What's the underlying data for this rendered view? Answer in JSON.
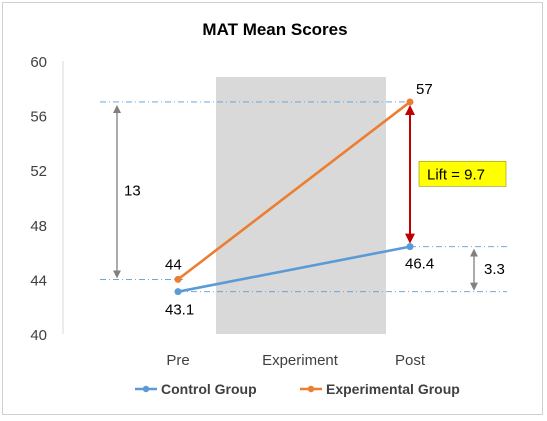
{
  "chart_data": {
    "type": "line",
    "title": "MAT Mean Scores",
    "categories": [
      "Pre",
      "Experiment",
      "Post"
    ],
    "ylim": [
      40,
      60
    ],
    "yticks": [
      40,
      44,
      48,
      52,
      56,
      60
    ],
    "grid": false,
    "legend_position": "bottom",
    "shaded_region_label": "Experiment",
    "series": [
      {
        "name": "Control Group",
        "color": "#5b9bd5",
        "points": [
          {
            "x": "Pre",
            "y": 43.1
          },
          {
            "x": "Post",
            "y": 46.4
          }
        ]
      },
      {
        "name": "Experimental Group",
        "color": "#ed7d31",
        "points": [
          {
            "x": "Pre",
            "y": 44
          },
          {
            "x": "Post",
            "y": 57
          }
        ]
      }
    ],
    "data_labels": {
      "exp_pre": "44",
      "ctrl_pre": "43.1",
      "exp_post": "57",
      "ctrl_post": "46.4"
    },
    "annotations": {
      "left_gap": {
        "label": "13",
        "from": 44,
        "to": 57
      },
      "right_gap": {
        "label": "3.3",
        "from": 43.1,
        "to": 46.4
      },
      "lift": {
        "label": "Lift = 9.7",
        "from": 46.4,
        "to": 57,
        "color": "#c00000",
        "box_color": "#ffff00"
      }
    },
    "reference_lines": [
      57,
      46.4,
      44,
      43.1
    ]
  }
}
